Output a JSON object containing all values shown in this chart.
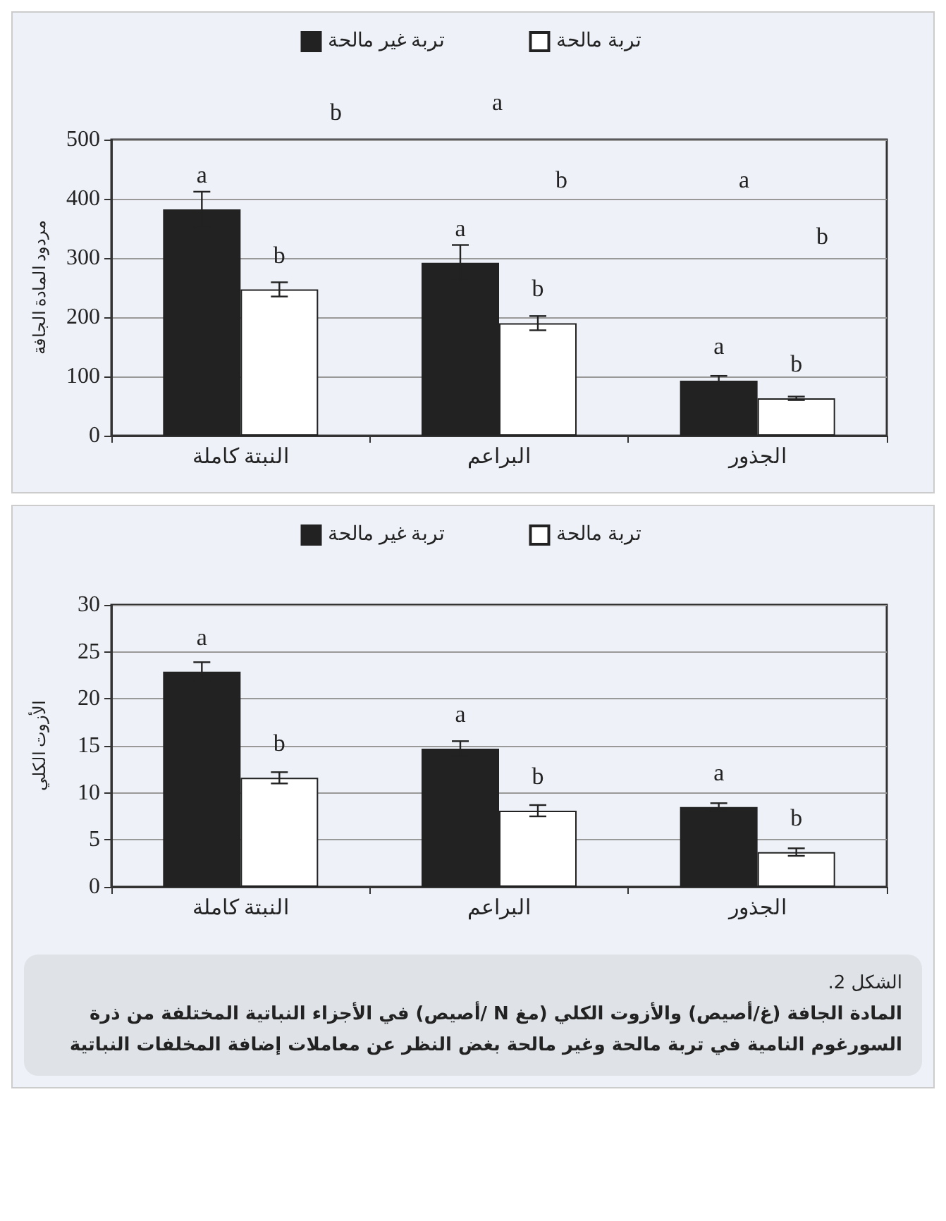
{
  "chart_data": [
    {
      "type": "bar",
      "ylabel": "مردود المادة الجافة",
      "categories": [
        "النبتة كاملة",
        "البراعم",
        "الجذور"
      ],
      "series": [
        {
          "name": "تربة غير مالحة",
          "color": "#222222",
          "values": [
            382,
            292,
            93
          ],
          "errors": [
            30,
            30,
            8
          ],
          "value_labels": [
            "a",
            "a",
            "a"
          ]
        },
        {
          "name": "تربة مالحة",
          "color": "#ffffff",
          "values": [
            247,
            190,
            63
          ],
          "errors": [
            12,
            12,
            3
          ],
          "value_labels": [
            "b",
            "b",
            "b"
          ]
        }
      ],
      "ylim": [
        0,
        500
      ],
      "yticks": [
        0,
        100,
        200,
        300,
        400,
        500
      ],
      "grid": "y",
      "legend": "top",
      "annotations": [
        "b",
        "a",
        "b",
        "a",
        "b"
      ]
    },
    {
      "type": "bar",
      "ylabel": "الأزوت الكلي",
      "categories": [
        "النبتة كاملة",
        "البراعم",
        "الجذور"
      ],
      "series": [
        {
          "name": "تربة غير مالحة",
          "color": "#222222",
          "values": [
            22.9,
            14.7,
            8.5
          ],
          "errors": [
            1,
            0.8,
            0.4
          ],
          "value_labels": [
            "a",
            "a",
            "a"
          ]
        },
        {
          "name": "تربة مالحة",
          "color": "#ffffff",
          "values": [
            11.6,
            8.1,
            3.7
          ],
          "errors": [
            0.6,
            0.6,
            0.4
          ],
          "value_labels": [
            "b",
            "b",
            "b"
          ]
        }
      ],
      "ylim": [
        0,
        30
      ],
      "yticks": [
        0,
        5,
        10,
        15,
        20,
        25,
        30
      ],
      "grid": "y",
      "legend": "top",
      "annotations": [
        "الشكل 2.",
        "المادة الجافة (غ/أصيص) والأزوت الكلي (مغ N /أصيص) في الأجزاء النباتية المختلفة من ذرة السورغوم النامية في تربة مالحة وغير مالحة بغض النظر عن معاملات إضافة المخلفات النباتية"
      ]
    }
  ]
}
